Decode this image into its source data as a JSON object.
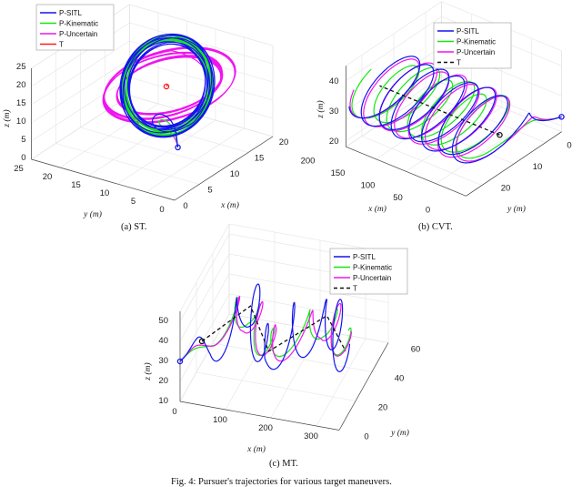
{
  "captions": {
    "a": "(a) ST.",
    "b": "(b) CVT.",
    "c": "(c) MT.",
    "figure": "Fig. 4: Pursuer's trajectories for various target maneuvers."
  },
  "colors": {
    "P-SITL": "#1414f0",
    "P-Kinematic": "#14e614",
    "P-Uncertain": "#f014f0",
    "T-red": "#ff1a1a",
    "T-black": "#111111"
  },
  "chart_data": [
    {
      "id": "a",
      "type": "line3d",
      "title": "(a) ST.",
      "xlabel": "x (m)",
      "ylabel": "y (m)",
      "zlabel": "z (m)",
      "xlim": [
        0,
        20
      ],
      "ylim": [
        0,
        25
      ],
      "zlim": [
        0,
        25
      ],
      "xticks": [
        0,
        5,
        10,
        15,
        20
      ],
      "yticks": [
        0,
        5,
        10,
        15,
        20,
        25
      ],
      "zticks": [
        0,
        5,
        10,
        15,
        20,
        25
      ],
      "legend": [
        "P-SITL",
        "P-Kinematic",
        "P-Uncertain",
        "T"
      ],
      "legend_position": "top-left",
      "target": {
        "style": "solid",
        "color": "#ff1a1a",
        "path": [
          [
            10,
            10,
            18
          ],
          [
            10.3,
            10,
            18.3
          ]
        ]
      },
      "series": [
        {
          "name": "P-Uncertain",
          "color": "#f014f0",
          "start": [
            3,
            2,
            11
          ],
          "u": [
            5,
            -6,
            2
          ],
          "v": [
            4,
            4,
            3
          ],
          "loops": 11,
          "phase": 2.2,
          "wobble": 0.15
        },
        {
          "name": "P-Kinematic",
          "color": "#14e614",
          "start": [
            3,
            2,
            11
          ],
          "u": [
            4,
            -4,
            0
          ],
          "v": [
            3,
            3,
            9
          ],
          "loops": 9,
          "phase": 1.0,
          "wobble": 0.05
        },
        {
          "name": "P-SITL",
          "color": "#1414f0",
          "start": [
            3,
            2,
            11
          ],
          "u": [
            4,
            -4,
            0
          ],
          "v": [
            2,
            2,
            10
          ],
          "loops": 10,
          "phase": 0.3,
          "wobble": 0.12
        }
      ]
    },
    {
      "id": "b",
      "type": "line3d",
      "title": "(b) CVT.",
      "xlabel": "x (m)",
      "ylabel": "y (m)",
      "zlabel": "z (m)",
      "xlim": [
        0,
        200
      ],
      "ylim": [
        -5,
        25
      ],
      "zlim": [
        18,
        45
      ],
      "xticks": [
        0,
        50,
        100,
        150,
        200
      ],
      "yticks": [
        0,
        10,
        20
      ],
      "zticks": [
        20,
        30,
        40
      ],
      "legend": [
        "P-SITL",
        "P-Kinematic",
        "P-Uncertain",
        "T"
      ],
      "legend_position": "top-right",
      "target": {
        "style": "dashed",
        "color": "#111111",
        "path": [
          [
            50,
            5,
            20
          ],
          [
            250,
            5,
            20
          ]
        ]
      },
      "series": [
        {
          "name": "P-Kinematic",
          "color": "#14e614",
          "start": [
            0,
            -5,
            23
          ],
          "u": [
            0,
            9,
            0
          ],
          "v": [
            0,
            0,
            7
          ],
          "loops": 7,
          "phase": 1.3,
          "wobble": 0.1
        },
        {
          "name": "P-Uncertain",
          "color": "#f014f0",
          "start": [
            0,
            -5,
            23
          ],
          "u": [
            0,
            10,
            0
          ],
          "v": [
            0,
            0,
            8
          ],
          "loops": 8,
          "phase": 0.6,
          "wobble": 0.05
        },
        {
          "name": "P-SITL",
          "color": "#1414f0",
          "start": [
            0,
            -5,
            23
          ],
          "u": [
            0,
            10,
            0
          ],
          "v": [
            0,
            0,
            8
          ],
          "loops": 8,
          "phase": 0.0,
          "wobble": 0.05
        }
      ]
    },
    {
      "id": "c",
      "type": "line3d",
      "title": "(c) MT.",
      "xlabel": "x (m)",
      "ylabel": "y (m)",
      "zlabel": "z (m)",
      "xlim": [
        0,
        350
      ],
      "ylim": [
        0,
        60
      ],
      "zlim": [
        10,
        55
      ],
      "xticks": [
        0,
        100,
        200,
        300
      ],
      "yticks": [
        0,
        20,
        40,
        60
      ],
      "zticks": [
        10,
        20,
        30,
        40,
        50
      ],
      "legend": [
        "P-SITL",
        "P-Kinematic",
        "P-Uncertain",
        "T"
      ],
      "legend_position": "top-right",
      "target": {
        "style": "dashed",
        "color": "#111111",
        "path": [
          [
            30,
            10,
            34
          ],
          [
            110,
            25,
            44
          ],
          [
            150,
            25,
            23
          ],
          [
            260,
            35,
            38
          ],
          [
            310,
            30,
            26
          ]
        ]
      },
      "series": [
        {
          "name": "P-Kinematic",
          "color": "#14e614",
          "start": [
            0,
            0,
            30
          ],
          "u": [
            0,
            8,
            0
          ],
          "v": [
            0,
            0,
            7
          ],
          "loops": 6,
          "phase": 1.2,
          "wobble": 0.2
        },
        {
          "name": "P-Uncertain",
          "color": "#f014f0",
          "start": [
            0,
            0,
            30
          ],
          "u": [
            0,
            9,
            0
          ],
          "v": [
            0,
            0,
            8
          ],
          "loops": 6,
          "phase": 0.7,
          "wobble": 0.25
        },
        {
          "name": "P-SITL",
          "color": "#1414f0",
          "start": [
            0,
            0,
            30
          ],
          "u": [
            0,
            7,
            0
          ],
          "v": [
            0,
            0,
            12
          ],
          "loops": 7,
          "phase": 0.0,
          "wobble": 0.35
        }
      ]
    }
  ]
}
